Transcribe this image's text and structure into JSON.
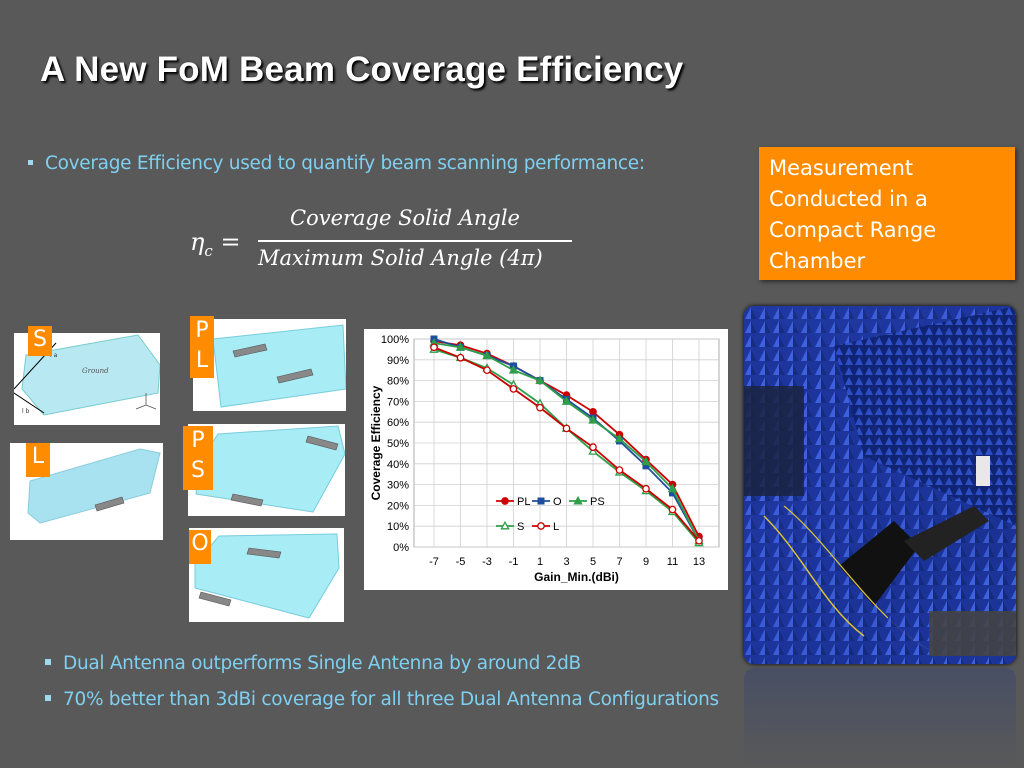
{
  "title": "A New FoM Beam Coverage Efficiency",
  "bullets": {
    "top": "Coverage Efficiency used to quantify beam scanning performance:",
    "b1": "Dual Antenna outperforms Single Antenna by around 2dB",
    "b2": "70% better than 3dBi coverage for all three Dual Antenna Configurations"
  },
  "formula": {
    "lhs": "η",
    "lhs_sub": "c",
    "eq": "=",
    "numerator": "Coverage Solid Angle",
    "denominator": "Maximum Solid Angle (4π)"
  },
  "callout": {
    "text_lines": [
      "Measurement",
      "Conducted in a",
      "Compact Range",
      "Chamber"
    ]
  },
  "antenna_tags": {
    "S": "S",
    "L": "L",
    "PL": [
      "P",
      "L"
    ],
    "PS": [
      "P",
      "S"
    ],
    "O": "O"
  },
  "ground_labels": {
    "ground": "Ground",
    "la": "l a",
    "lb": "l b"
  },
  "colors": {
    "background": "#595959",
    "accent_orange": "#ff8c00",
    "bullet_text": "#7fd0f0",
    "board": "#a8e6f0"
  },
  "chart_data": {
    "type": "line",
    "x": [
      -7,
      -5,
      -3,
      -1,
      1,
      3,
      5,
      7,
      9,
      11,
      13
    ],
    "xlabel": "Gain_Min.(dBi)",
    "ylabel": "Coverage Efficiency",
    "ylim": [
      0,
      100
    ],
    "y_ticks": [
      "0%",
      "10%",
      "20%",
      "30%",
      "40%",
      "50%",
      "60%",
      "70%",
      "80%",
      "90%",
      "100%"
    ],
    "x_ticks": [
      "-7",
      "-5",
      "-3",
      "-1",
      "1",
      "3",
      "5",
      "7",
      "9",
      "11",
      "13"
    ],
    "grid": true,
    "legend_position": "bottom-right",
    "series": [
      {
        "name": "PL",
        "color": "#cc0000",
        "marker": "filled-circle",
        "values": [
          99,
          97,
          93,
          87,
          80,
          73,
          65,
          54,
          42,
          30,
          5
        ]
      },
      {
        "name": "O",
        "color": "#1f4e9e",
        "marker": "filled-square",
        "values": [
          100,
          96,
          92,
          87,
          80,
          71,
          62,
          51,
          39,
          26,
          3
        ]
      },
      {
        "name": "PS",
        "color": "#2e9e4a",
        "marker": "filled-triangle",
        "values": [
          98,
          96,
          92,
          85,
          80,
          70,
          61,
          52,
          41,
          28,
          3
        ]
      },
      {
        "name": "S",
        "color": "#2e9e4a",
        "marker": "hollow-triangle",
        "values": [
          95,
          91,
          86,
          78,
          69,
          57,
          46,
          36,
          27,
          17,
          2
        ]
      },
      {
        "name": "L",
        "color": "#cc0000",
        "marker": "hollow-circle",
        "values": [
          96,
          91,
          85,
          76,
          67,
          57,
          48,
          37,
          28,
          18,
          3
        ]
      }
    ]
  }
}
